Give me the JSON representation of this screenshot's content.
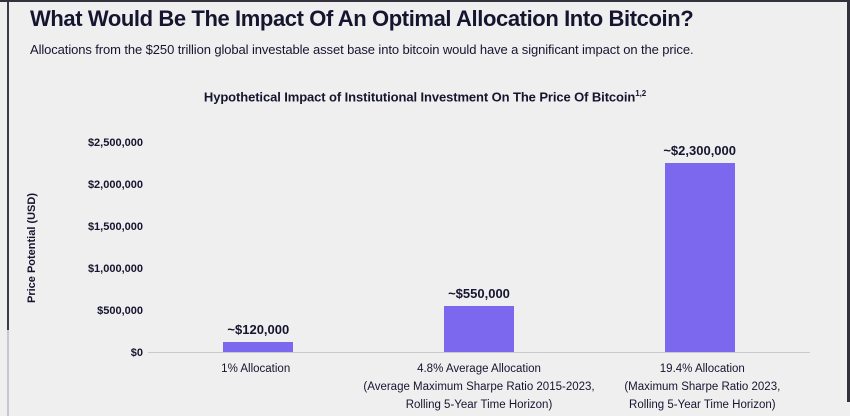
{
  "header": {
    "title": "What Would Be The Impact Of An Optimal Allocation Into Bitcoin?",
    "subtitle": "Allocations from the $250 trillion global investable asset base into bitcoin would have a significant impact on the price."
  },
  "colors": {
    "background": "#EFEFEF",
    "text": "#16152F",
    "bar": "#7B68EE",
    "axis_line": "#C9C9C9",
    "scrollbar_track": "#C9C6D2",
    "scrollbar_thumb": "#3B3A46",
    "frame_border": "#33323C"
  },
  "chart_data": {
    "type": "bar",
    "title": "Hypothetical Impact of Institutional Investment On The Price Of Bitcoin",
    "title_superscript": "1,2",
    "ylabel": "Price Potential (USD)",
    "xlabel": "",
    "ylim": [
      0,
      2500000
    ],
    "grid": false,
    "legend": false,
    "bar_color": "#7B68EE",
    "yticks": [
      {
        "value": 0,
        "label": "$0"
      },
      {
        "value": 500000,
        "label": "$500,000"
      },
      {
        "value": 1000000,
        "label": "$1,000,000"
      },
      {
        "value": 1500000,
        "label": "$1,500,000"
      },
      {
        "value": 2000000,
        "label": "$2,000,000"
      },
      {
        "value": 2500000,
        "label": "$2,500,000"
      }
    ],
    "bars": [
      {
        "value": 120000,
        "value_label": "~$120,000",
        "category_lines": [
          "1% Allocation"
        ]
      },
      {
        "value": 550000,
        "value_label": "~$550,000",
        "category_lines": [
          "4.8% Average Allocation",
          "(Average Maximum Sharpe Ratio 2015-2023,",
          "Rolling 5-Year Time Horizon)"
        ]
      },
      {
        "value": 2300000,
        "value_label": "~$2,300,000",
        "category_lines": [
          "19.4% Allocation",
          "(Maximum Sharpe Ratio 2023,",
          "Rolling 5-Year Time Horizon)"
        ]
      }
    ]
  }
}
